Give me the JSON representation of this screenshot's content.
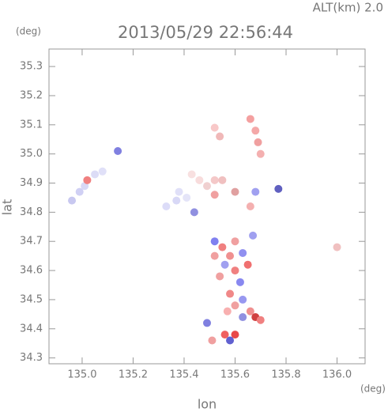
{
  "chart_data": {
    "type": "scatter",
    "title": "2013/05/29 22:56:44",
    "annotation": "ALT(km) 2.0",
    "y_unit": "(deg)",
    "x_unit": "(deg)",
    "xlabel": "lon",
    "ylabel": "lat",
    "xlim": [
      134.87,
      136.11
    ],
    "ylim": [
      34.28,
      35.36
    ],
    "xticks": [
      {
        "value": 135,
        "label": "135.0"
      },
      135.2,
      135.4,
      135.6,
      135.8,
      {
        "value": 136,
        "label": "136.0"
      }
    ],
    "yticks": [
      34.3,
      34.4,
      34.5,
      34.6,
      34.7,
      34.8,
      34.9,
      {
        "value": 35,
        "label": "35.0"
      },
      35.1,
      35.2,
      35.3
    ],
    "x": [
      134.96,
      134.99,
      135.01,
      135.05,
      135.08,
      135.14,
      135.02,
      135.33,
      135.37,
      135.38,
      135.41,
      135.43,
      135.46,
      135.49,
      135.52,
      135.55,
      135.52,
      135.54,
      135.66,
      135.68,
      135.69,
      135.7,
      135.6,
      135.66,
      135.68,
      135.52,
      135.44,
      135.52,
      135.55,
      135.58,
      135.63,
      135.65,
      135.56,
      135.6,
      135.54,
      135.62,
      135.58,
      135.6,
      135.63,
      135.57,
      135.66,
      135.68,
      135.63,
      135.49,
      135.56,
      135.6,
      135.58,
      135.51,
      135.7,
      135.52,
      135.6,
      135.67,
      136.0,
      135.77
    ],
    "y": [
      34.84,
      34.87,
      34.89,
      34.93,
      34.94,
      35.01,
      34.91,
      34.82,
      34.84,
      34.87,
      34.85,
      34.93,
      34.91,
      34.89,
      34.91,
      34.91,
      35.09,
      35.06,
      35.12,
      35.08,
      35.04,
      35.0,
      34.87,
      34.82,
      34.87,
      34.86,
      34.8,
      34.7,
      34.68,
      34.65,
      34.66,
      34.62,
      34.62,
      34.6,
      34.58,
      34.56,
      34.52,
      34.48,
      34.5,
      34.46,
      34.46,
      34.44,
      34.44,
      34.42,
      34.38,
      34.38,
      34.36,
      34.36,
      34.43,
      34.65,
      34.7,
      34.72,
      34.68,
      34.88
    ],
    "colors": [
      "#c8c8f0",
      "#d0d0f4",
      "#d8d8f6",
      "#dcdcf6",
      "#e0e0f8",
      "#8080e0",
      "#f08080",
      "#dcdcf8",
      "#d8d8f6",
      "#e0e0f8",
      "#e4e4f8",
      "#f8e0e0",
      "#f8dcdc",
      "#f0d0d0",
      "#f4c8c8",
      "#f0c0c0",
      "#f8c8c8",
      "#f0b8b8",
      "#f4a0a0",
      "#f4a8a8",
      "#f0a0a0",
      "#f4b0b0",
      "#e0a0a0",
      "#f4b0b0",
      "#a0a0f0",
      "#f0a0a0",
      "#9090e0",
      "#8080f0",
      "#f08080",
      "#f09090",
      "#9090f0",
      "#f07070",
      "#a0a0f0",
      "#f08080",
      "#f0a0a0",
      "#8888f0",
      "#f08888",
      "#f0a0a0",
      "#9898f0",
      "#f8b0b0",
      "#f09090",
      "#d04040",
      "#9090e0",
      "#8080e0",
      "#f06060",
      "#e84848",
      "#6060d0",
      "#f0a0a0",
      "#f08080",
      "#f0a0a0",
      "#f0a0a0",
      "#a0a0f0",
      "#f0c0c0",
      "#6060c0"
    ]
  }
}
